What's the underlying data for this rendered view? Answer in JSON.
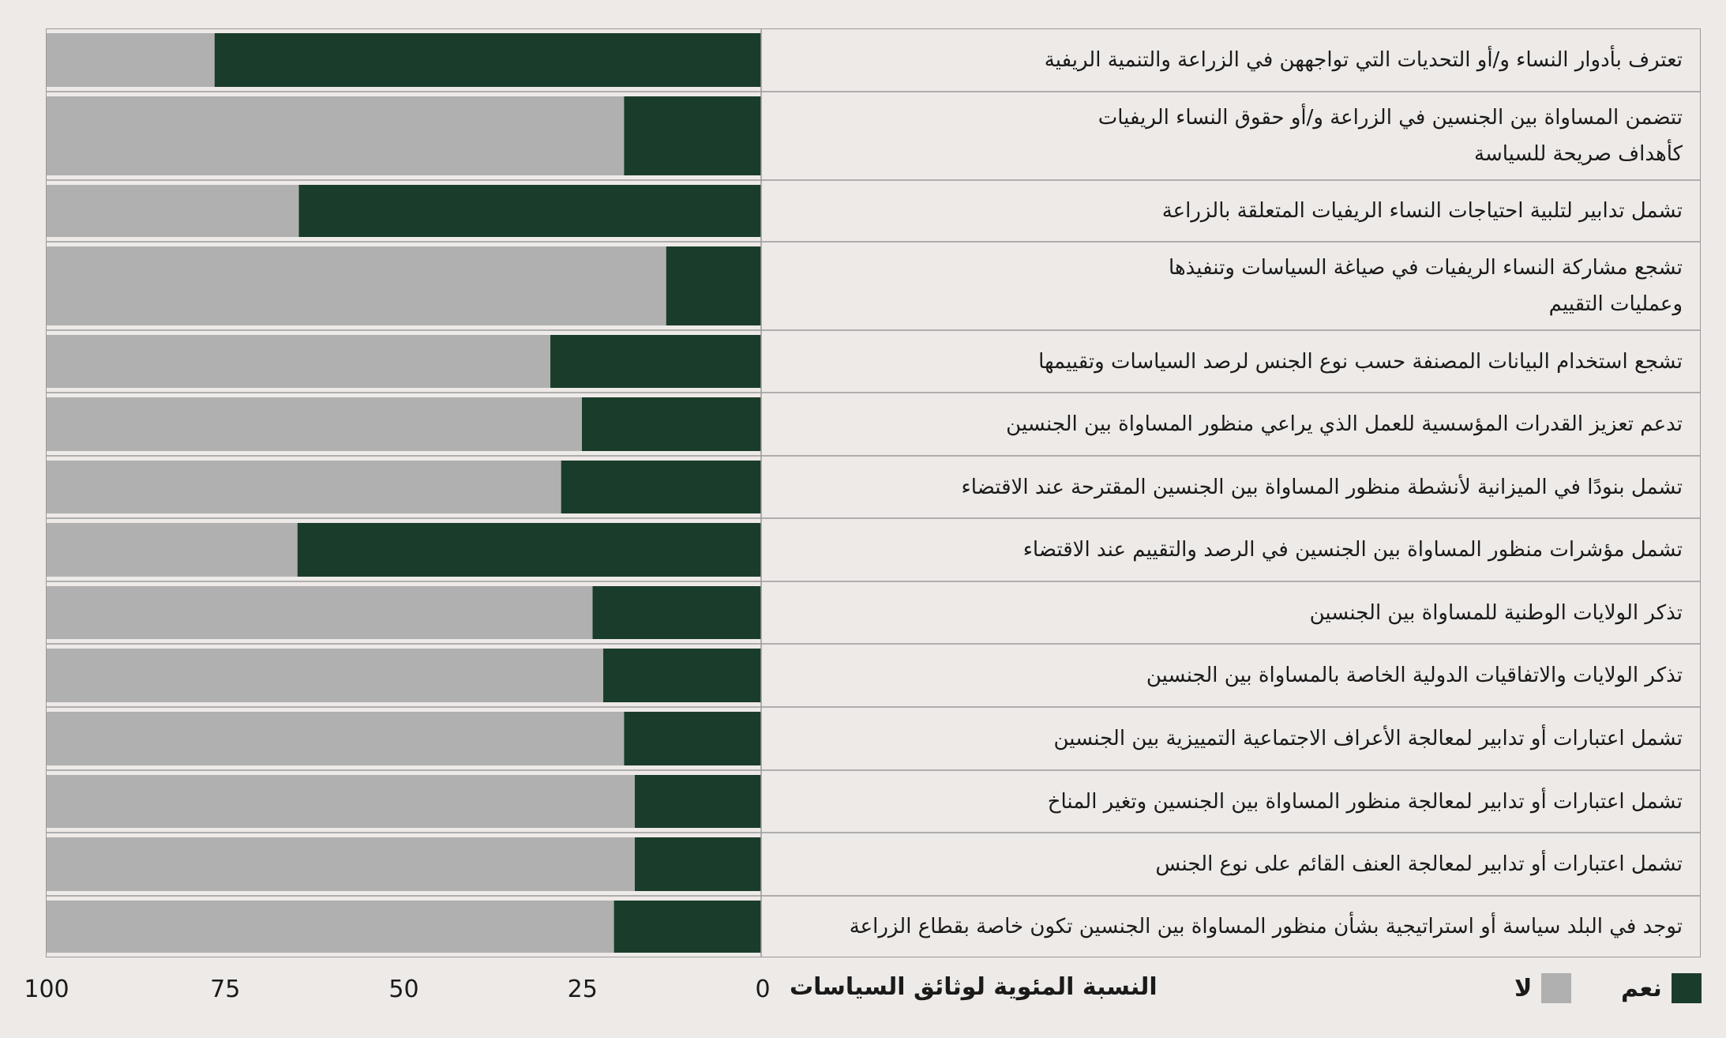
{
  "chart_data": {
    "type": "bar",
    "orientation": "horizontal",
    "stacked": true,
    "categories": [
      "تعترف بأدوار النساء و/أو التحديات التي تواجههن في الزراعة والتنمية الريفية",
      "تتضمن المساواة بين الجنسين في الزراعة و/أو حقوق النساء الريفيات كأهداف صريحة للسياسة",
      "تشمل تدابير لتلبية احتياجات النساء الريفيات المتعلقة بالزراعة",
      "تشجع مشاركة النساء الريفيات في صياغة السياسات وتنفيذها وعمليات التقييم",
      "تشجع استخدام البيانات المصنفة حسب نوع الجنس لرصد السياسات وتقييمها",
      "تدعم تعزيز القدرات المؤسسية للعمل الذي يراعي منظور المساواة بين الجنسين",
      "تشمل بنودًا في الميزانية لأنشطة منظور المساواة بين الجنسين المقترحة عند الاقتضاء",
      "تشمل مؤشرات منظور المساواة بين الجنسين في الرصد والتقييم عند الاقتضاء",
      "تذكر الولايات الوطنية للمساواة بين الجنسين",
      "تذكر الولايات والاتفاقيات الدولية الخاصة بالمساواة بين الجنسين",
      "تشمل اعتبارات أو تدابير لمعالجة الأعراف الاجتماعية التمييزية بين الجنسين",
      "تشمل اعتبارات أو تدابير لمعالجة منظور المساواة بين الجنسين وتغير المناخ",
      "تشمل اعتبارات أو تدابير لمعالجة العنف القائم على نوع الجنس",
      "توجد في البلد سياسة أو استراتيجية بشأن منظور المساواة بين الجنسين تكون خاصة بقطاع الزراعة"
    ],
    "label_lines": [
      [
        "تعترف بأدوار النساء و/أو التحديات التي تواجههن في الزراعة والتنمية الريفية"
      ],
      [
        "تتضمن المساواة بين الجنسين في الزراعة و/أو حقوق النساء الريفيات",
        "كأهداف صريحة للسياسة"
      ],
      [
        "تشمل تدابير لتلبية احتياجات النساء الريفيات المتعلقة بالزراعة"
      ],
      [
        "تشجع مشاركة النساء الريفيات في صياغة السياسات وتنفيذها",
        "وعمليات التقييم"
      ],
      [
        "تشجع استخدام البيانات المصنفة حسب نوع الجنس لرصد السياسات وتقييمها"
      ],
      [
        "تدعم تعزيز القدرات المؤسسية للعمل الذي يراعي منظور المساواة بين الجنسين"
      ],
      [
        "تشمل بنودًا في الميزانية لأنشطة منظور المساواة بين الجنسين المقترحة عند الاقتضاء"
      ],
      [
        "تشمل مؤشرات منظور المساواة بين الجنسين في الرصد والتقييم عند الاقتضاء"
      ],
      [
        "تذكر الولايات الوطنية للمساواة بين الجنسين"
      ],
      [
        "تذكر الولايات والاتفاقيات الدولية الخاصة بالمساواة بين الجنسين"
      ],
      [
        "تشمل اعتبارات أو تدابير لمعالجة الأعراف الاجتماعية التمييزية بين الجنسين"
      ],
      [
        "تشمل اعتبارات أو تدابير لمعالجة منظور المساواة بين الجنسين وتغير المناخ"
      ],
      [
        "تشمل اعتبارات أو تدابير لمعالجة العنف القائم على نوع الجنس"
      ],
      [
        "توجد في البلد سياسة أو استراتيجية بشأن منظور المساواة بين الجنسين تكون خاصة بقطاع الزراعة"
      ]
    ],
    "series": [
      {
        "name": "نعم",
        "color": "#1a3d2b",
        "values": [
          76.5,
          19.2,
          64.7,
          13.3,
          29.5,
          25.1,
          28.0,
          64.9,
          23.6,
          22.1,
          19.2,
          17.7,
          17.7,
          20.6
        ]
      },
      {
        "name": "لا",
        "color": "#b0b0b0",
        "values": [
          23.5,
          80.8,
          35.3,
          86.7,
          70.5,
          74.9,
          72.0,
          35.1,
          76.4,
          77.9,
          80.8,
          82.3,
          82.3,
          79.4
        ]
      }
    ],
    "xlim": [
      0,
      100
    ],
    "x_direction": "right-to-left",
    "ticks": [
      "0",
      "25",
      "50",
      "75",
      "100"
    ],
    "xlabel": "النسبة المئوية لوثائق السياسات",
    "legend_position": "bottom-right",
    "grid": false
  }
}
